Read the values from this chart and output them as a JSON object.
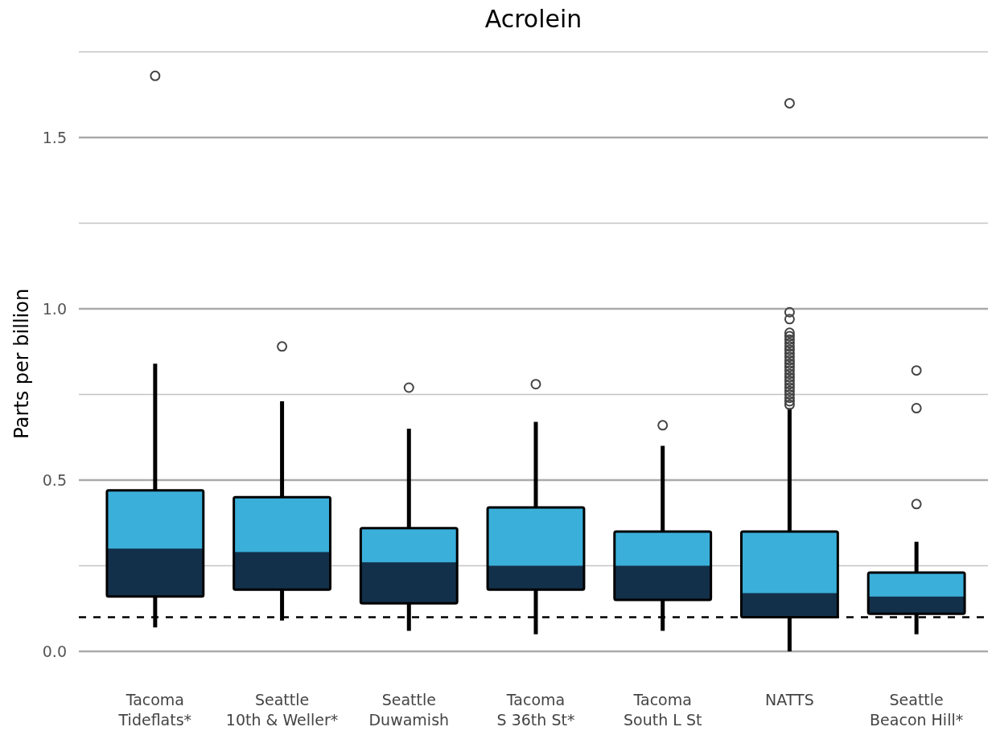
{
  "chart_data": {
    "type": "box",
    "title": "Acrolein",
    "ylabel": "Parts per billion",
    "categories": [
      "Tacoma Tideflats*",
      "Seattle 10th & Weller*",
      "Seattle Duwamish",
      "Tacoma S 36th St*",
      "Tacoma South L St",
      "NATTS",
      "Seattle Beacon Hill*"
    ],
    "series": [
      {
        "color": "#3aafd9",
        "boxes": [
          {
            "low": 0.07,
            "q1": 0.16,
            "median": 0.3,
            "q3": 0.47,
            "high": 0.84,
            "outliers": [
              1.68
            ]
          },
          {
            "low": 0.09,
            "q1": 0.18,
            "median": 0.29,
            "q3": 0.45,
            "high": 0.73,
            "outliers": [
              0.89
            ]
          },
          {
            "low": 0.06,
            "q1": 0.14,
            "median": 0.26,
            "q3": 0.36,
            "high": 0.65,
            "outliers": [
              0.77
            ]
          },
          {
            "low": 0.05,
            "q1": 0.18,
            "median": 0.25,
            "q3": 0.42,
            "high": 0.67,
            "outliers": [
              0.78
            ]
          },
          {
            "low": 0.06,
            "q1": 0.15,
            "median": 0.25,
            "q3": 0.35,
            "high": 0.6,
            "outliers": [
              0.66
            ]
          },
          {
            "low": 0.0,
            "q1": 0.1,
            "median": 0.17,
            "q3": 0.35,
            "high": 0.71,
            "outliers": [
              0.72,
              0.73,
              0.74,
              0.75,
              0.76,
              0.77,
              0.78,
              0.79,
              0.8,
              0.81,
              0.82,
              0.83,
              0.84,
              0.85,
              0.86,
              0.87,
              0.88,
              0.89,
              0.9,
              0.91,
              0.92,
              0.93,
              0.97,
              0.99,
              1.6
            ]
          },
          {
            "low": 0.05,
            "q1": 0.11,
            "median": 0.16,
            "q3": 0.23,
            "high": 0.32,
            "outliers": [
              0.43,
              0.71,
              0.82
            ]
          }
        ]
      }
    ],
    "ylim": [
      0,
      1.75
    ],
    "yticks": [
      {
        "value": 0,
        "label": "0.0"
      },
      {
        "value": 0.25,
        "label": null
      },
      0.5,
      {
        "value": 0.75,
        "label": null
      },
      {
        "value": 1,
        "label": "1.0"
      },
      {
        "value": 1.25,
        "label": null
      },
      1.5,
      {
        "value": 1.75,
        "label": null
      }
    ],
    "grid": true,
    "ref_lines": [
      {
        "axis": "y",
        "value": 0.1,
        "color": "#000000",
        "line_style": "dashed"
      }
    ]
  }
}
